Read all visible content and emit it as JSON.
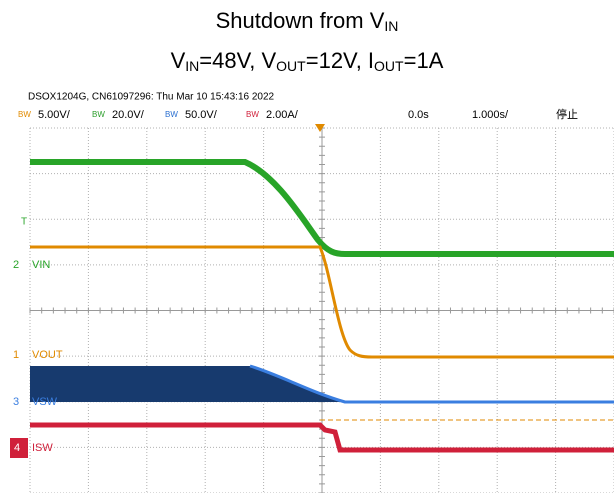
{
  "title": {
    "line1": {
      "text": "Shutdown from V",
      "sub": "IN"
    },
    "line2": [
      {
        "text": "V",
        "sub": "IN"
      },
      {
        "text": "=48V, V",
        "sub": "OUT"
      },
      {
        "text": "=12V, I",
        "sub": "OUT"
      },
      {
        "text": "=1A"
      }
    ]
  },
  "scope": {
    "info": "DSOX1204G, CN61097296: Thu Mar 10 15:43:16 2022",
    "channels": [
      {
        "bw": "BW",
        "scale": "5.00V/"
      },
      {
        "bw": "BW",
        "scale": "20.0V/"
      },
      {
        "bw": "BW",
        "scale": "50.0V/"
      },
      {
        "bw": "BW",
        "scale": "2.00A/"
      }
    ],
    "delay": "0.0s",
    "timebase": "1.000s/",
    "status": "停止",
    "trigger": "T",
    "markers": [
      {
        "number": "2",
        "label": "VIN"
      },
      {
        "number": "1",
        "label": "VOUT"
      },
      {
        "number": "3",
        "label": "VSW"
      },
      {
        "number": "4",
        "label": "ISW"
      }
    ]
  }
}
